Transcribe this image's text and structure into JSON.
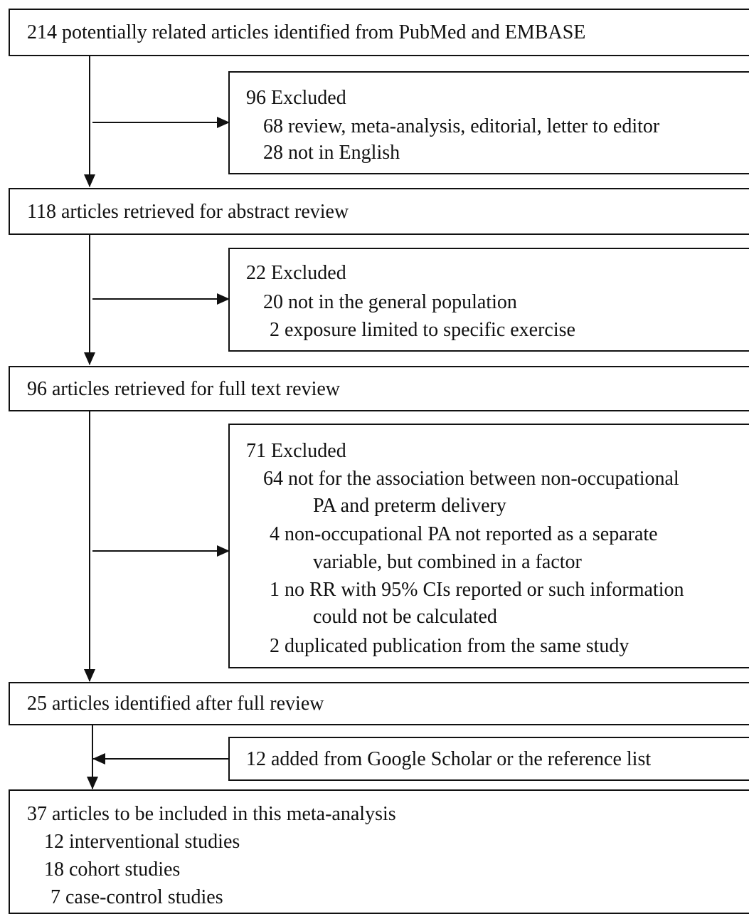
{
  "flowchart": {
    "identified": {
      "text": "214 potentially related articles identified from PubMed and EMBASE"
    },
    "excluded_1": {
      "heading": "96 Excluded",
      "items": [
        "68 review, meta-analysis, editorial, letter to editor",
        "28 not in English"
      ]
    },
    "abstract_review": {
      "text": "118 articles retrieved for abstract review"
    },
    "excluded_2": {
      "heading": "22 Excluded",
      "items": [
        "20 not in the general population",
        "2 exposure limited to specific exercise"
      ]
    },
    "full_text_review": {
      "text": "96 articles retrieved for full text review"
    },
    "excluded_3": {
      "heading": "71 Excluded",
      "lines": [
        "64 not for the association between non-occupational",
        "PA and preterm delivery",
        "4 non-occupational PA not reported as a separate",
        "variable, but combined in a factor",
        "1 no RR with 95% CIs reported or such information",
        "could not be calculated",
        "2 duplicated publication from the same study"
      ]
    },
    "after_full_review": {
      "text": "25 articles identified after full review"
    },
    "added": {
      "text": "12 added from Google Scholar or the reference list"
    },
    "included": {
      "heading": "37 articles to be included in this meta-analysis",
      "items": [
        "12 interventional studies",
        "18 cohort studies",
        "7 case-control studies"
      ]
    }
  }
}
